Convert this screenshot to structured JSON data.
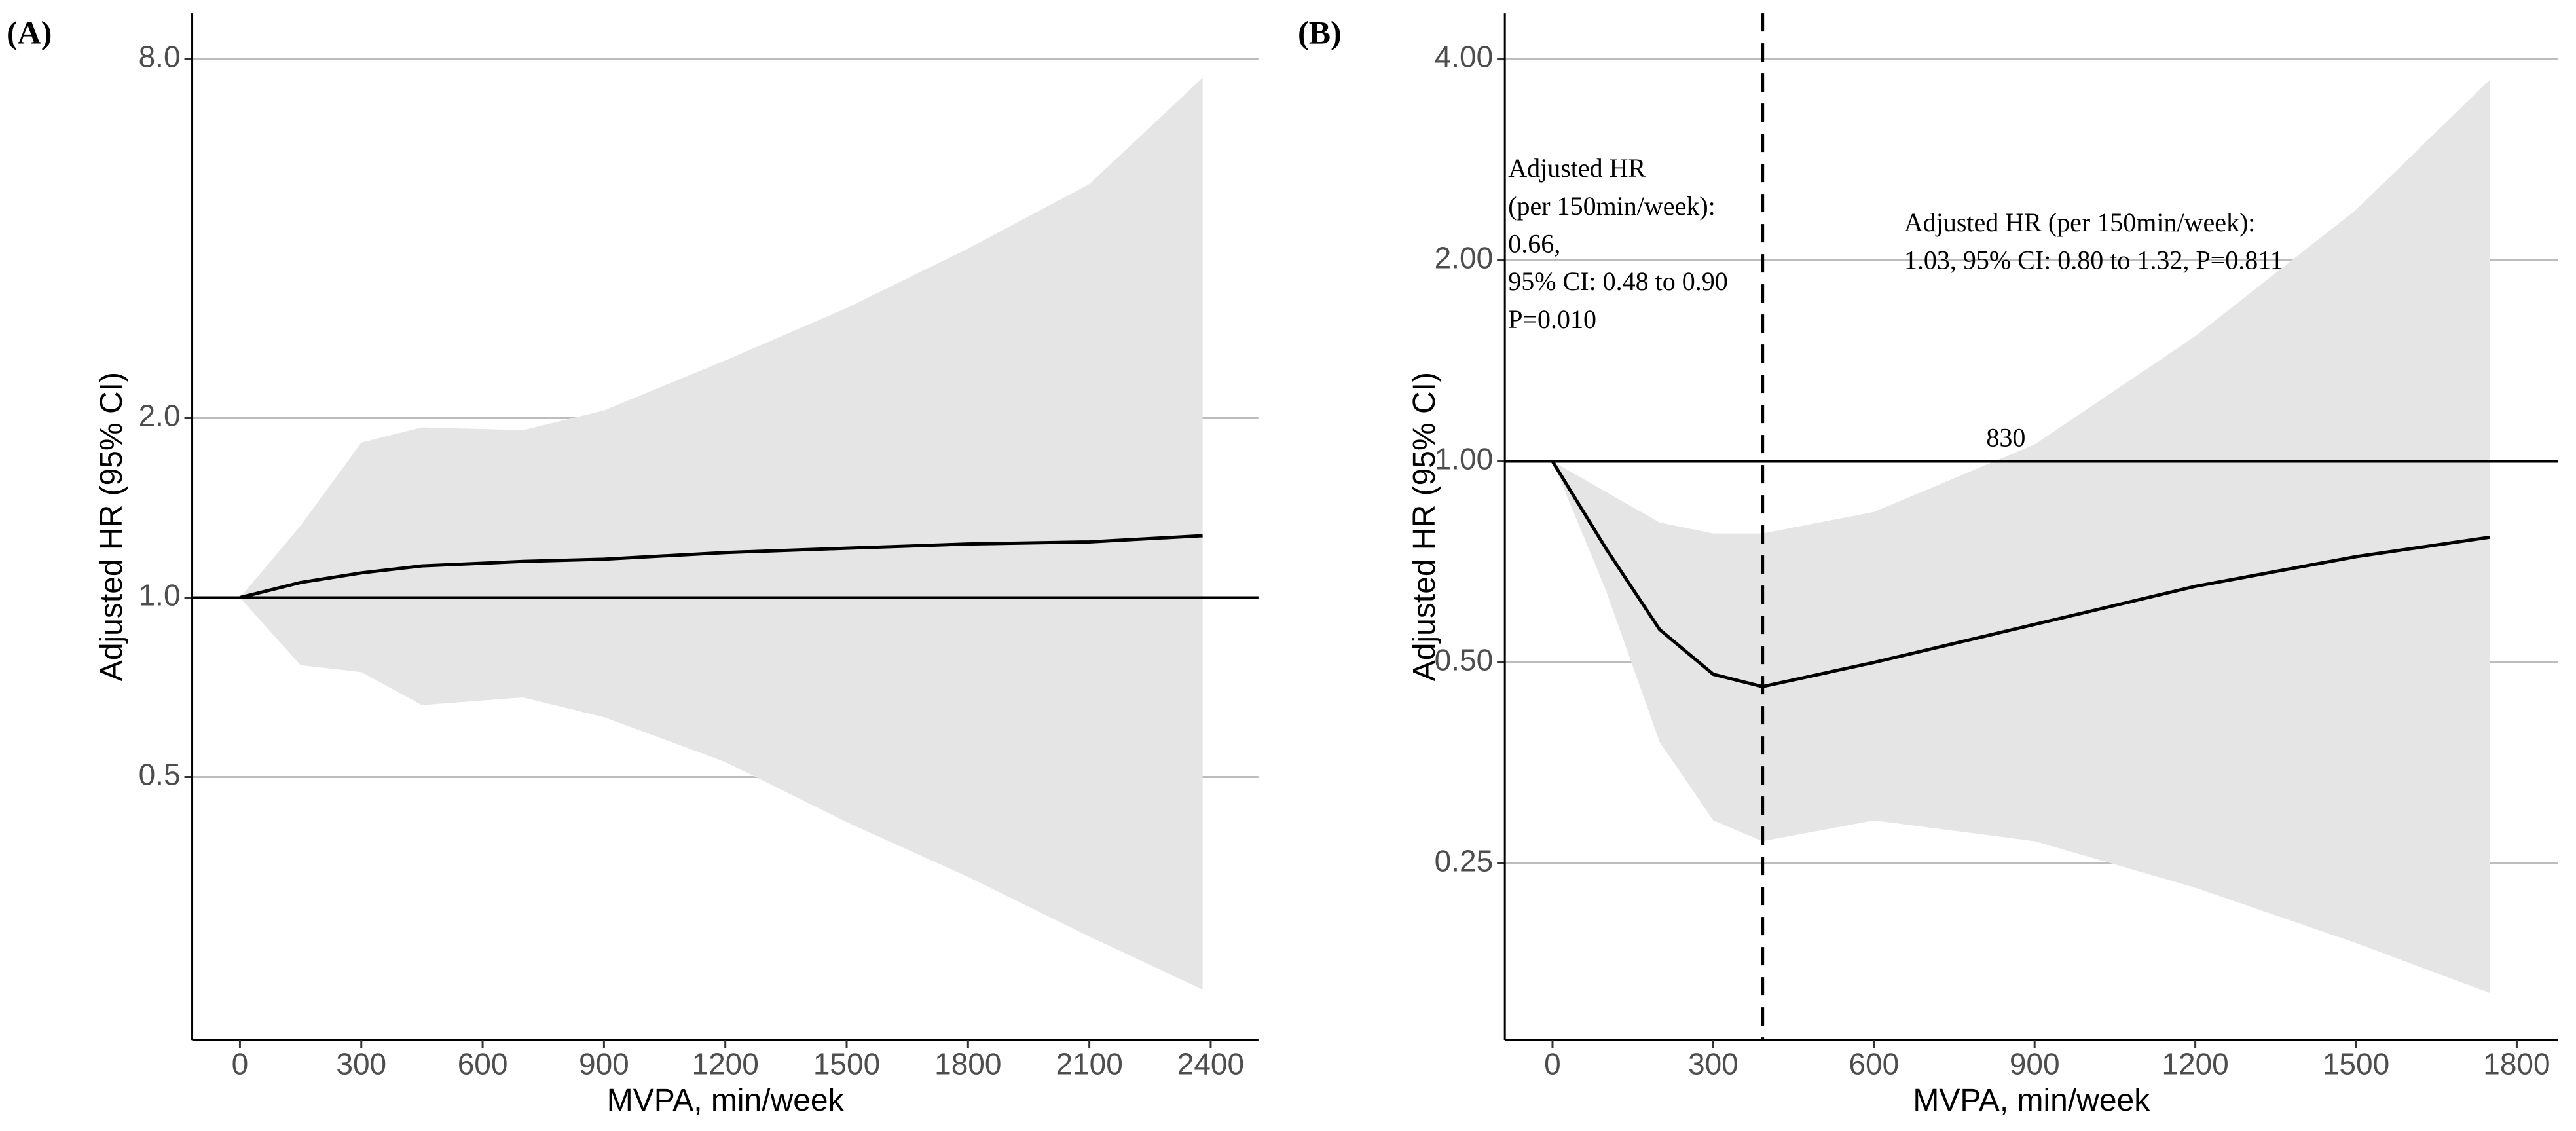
{
  "chart_data": [
    {
      "type": "line",
      "panel_label": "(A)",
      "x_label": "MVPA, min/week",
      "y_label": "Adjusted HR (95% CI)",
      "log_y": true,
      "grid": true,
      "reference_line": 1,
      "xlim": [
        -118,
        2518
      ],
      "xticks": [
        0,
        300,
        600,
        900,
        1200,
        1500,
        1800,
        2100,
        2400
      ],
      "ylim": [
        0.181,
        9.56
      ],
      "yticks": [
        0.5,
        {
          "value": 1,
          "label": "1.0"
        },
        {
          "value": 2,
          "label": "2.0"
        },
        {
          "value": 8,
          "label": "8.0"
        }
      ],
      "line_color": "#000000",
      "band_color": "#e5e5e5",
      "x": [
        0,
        150,
        300,
        450,
        700,
        900,
        1200,
        1500,
        1800,
        2100,
        2380
      ],
      "values": [
        1.0,
        1.06,
        1.1,
        1.13,
        1.15,
        1.16,
        1.19,
        1.21,
        1.23,
        1.24,
        1.27
      ],
      "upper": [
        1.0,
        1.32,
        1.82,
        1.93,
        1.91,
        2.06,
        2.5,
        3.06,
        3.85,
        4.94,
        7.45
      ],
      "lower": [
        1.0,
        0.77,
        0.75,
        0.66,
        0.68,
        0.63,
        0.53,
        0.42,
        0.34,
        0.27,
        0.22
      ]
    },
    {
      "type": "line",
      "panel_label": "(B)",
      "x_label": "MVPA, min/week",
      "y_label": "Adjusted HR (95% CI)",
      "log_y": true,
      "grid": true,
      "reference_line": 1,
      "vline": 392,
      "xlim": [
        -89,
        1877
      ],
      "xticks": [
        0,
        300,
        600,
        900,
        1200,
        1500,
        1800
      ],
      "ylim": [
        0.136,
        4.69
      ],
      "yticks": [
        0.25,
        {
          "value": 0.5,
          "label": "0.50"
        },
        {
          "value": 1,
          "label": "1.00"
        },
        {
          "value": 2,
          "label": "2.00"
        },
        {
          "value": 4,
          "label": "4.00"
        }
      ],
      "line_color": "#000000",
      "band_color": "#e5e5e5",
      "x": [
        0,
        100,
        200,
        300,
        392,
        600,
        900,
        1200,
        1500,
        1750
      ],
      "values": [
        1.0,
        0.74,
        0.56,
        0.48,
        0.46,
        0.5,
        0.57,
        0.65,
        0.72,
        0.77
      ],
      "upper": [
        1.0,
        0.9,
        0.81,
        0.78,
        0.78,
        0.84,
        1.06,
        1.54,
        2.38,
        3.73
      ],
      "lower": [
        1.0,
        0.64,
        0.38,
        0.29,
        0.27,
        0.29,
        0.27,
        0.23,
        0.19,
        0.16
      ],
      "annotations": [
        [
          "Adjusted HR",
          "(per 150min/week):",
          "0.66,",
          "95% CI: 0.48 to 0.90",
          "P=0.010"
        ],
        [
          "Adjusted HR (per 150min/week):",
          "1.03, 95% CI: 0.80 to 1.32, P=0.811"
        ],
        [
          "830"
        ]
      ]
    }
  ]
}
